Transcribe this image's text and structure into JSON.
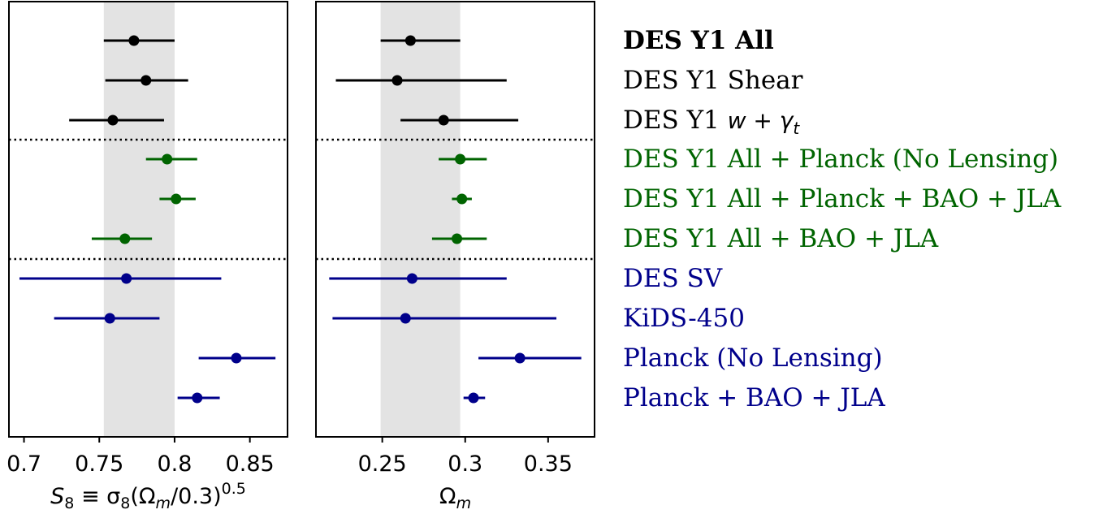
{
  "colors": {
    "black": "#000000",
    "green": "#006400",
    "blue": "#00008b",
    "band": "#e3e3e3"
  },
  "chart_data": [
    {
      "type": "scatter",
      "subtype": "errorbar-forest",
      "xlabel_parts": {
        "main": "S",
        "sub1": "8",
        "mid": " ≡ σ",
        "sub2": "8",
        "mid2": "(Ω",
        "sub3": "m",
        "end": "/0.3)",
        "sup": "0.5"
      },
      "xlim": [
        0.69,
        0.875
      ],
      "xticks": [
        0.7,
        0.75,
        0.8,
        0.85
      ],
      "xtick_labels": [
        "0.7",
        "0.75",
        "0.8",
        "0.85"
      ],
      "band": [
        0.753,
        0.8
      ],
      "series": [
        {
          "group": "black",
          "values": [
            [
              0.773,
              0.753,
              0.8
            ],
            [
              0.781,
              0.754,
              0.809
            ],
            [
              0.759,
              0.73,
              0.793
            ]
          ]
        },
        {
          "group": "green",
          "values": [
            [
              0.795,
              0.781,
              0.815
            ],
            [
              0.801,
              0.79,
              0.814
            ],
            [
              0.767,
              0.745,
              0.785
            ]
          ]
        },
        {
          "group": "blue",
          "values": [
            [
              0.768,
              0.697,
              0.831
            ],
            [
              0.757,
              0.72,
              0.79
            ],
            [
              0.841,
              0.816,
              0.867
            ],
            [
              0.815,
              0.802,
              0.83
            ]
          ]
        }
      ]
    },
    {
      "type": "scatter",
      "subtype": "errorbar-forest",
      "xlabel_parts": {
        "main": "Ω",
        "sub1": "m"
      },
      "xlim": [
        0.21,
        0.378
      ],
      "xticks": [
        0.25,
        0.3,
        0.35
      ],
      "xtick_labels": [
        "0.25",
        "0.3",
        "0.35"
      ],
      "band": [
        0.249,
        0.297
      ],
      "series": [
        {
          "group": "black",
          "values": [
            [
              0.267,
              0.249,
              0.297
            ],
            [
              0.259,
              0.222,
              0.325
            ],
            [
              0.287,
              0.261,
              0.332
            ]
          ]
        },
        {
          "group": "green",
          "values": [
            [
              0.297,
              0.284,
              0.313
            ],
            [
              0.298,
              0.292,
              0.304
            ],
            [
              0.295,
              0.28,
              0.313
            ]
          ]
        },
        {
          "group": "blue",
          "values": [
            [
              0.268,
              0.218,
              0.325
            ],
            [
              0.264,
              0.22,
              0.355
            ],
            [
              0.333,
              0.308,
              0.37
            ],
            [
              0.305,
              0.299,
              0.312
            ]
          ]
        }
      ]
    }
  ],
  "legend": [
    {
      "text": "DES Y1 All",
      "group": "black",
      "bold": true
    },
    {
      "text": "DES Y1 Shear",
      "group": "black"
    },
    {
      "text": "DES Y1 ",
      "math": "w + γ",
      "math_sub": "t",
      "group": "black"
    },
    {
      "text": "DES Y1 All + Planck (No Lensing)",
      "group": "green"
    },
    {
      "text": "DES Y1 All + Planck + BAO + JLA",
      "group": "green"
    },
    {
      "text": "DES Y1 All + BAO + JLA",
      "group": "green"
    },
    {
      "text": "DES SV",
      "group": "blue"
    },
    {
      "text": "KiDS-450",
      "group": "blue"
    },
    {
      "text": "Planck (No Lensing)",
      "group": "blue"
    },
    {
      "text": "Planck + BAO + JLA",
      "group": "blue"
    }
  ]
}
